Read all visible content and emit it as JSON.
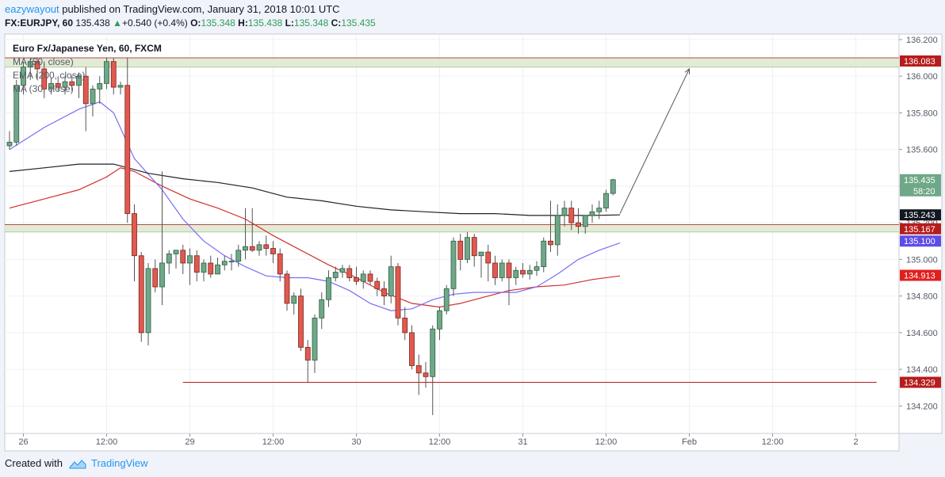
{
  "header": {
    "author": "eazywayout",
    "published": "published on TradingView.com, January 31, 2018 10:01 UTC",
    "symbol": "FX:EURJPY, 60",
    "last": "135.438",
    "change": "+0.540 (+0.4%)",
    "o_label": "O:",
    "o_value": "135.348",
    "h_label": "H:",
    "h_value": "135.438",
    "l_label": "L:",
    "l_value": "135.348",
    "c_label": "C:",
    "c_value": "135.435"
  },
  "footer": {
    "created_with": "Created with",
    "brand": "TradingView"
  },
  "chart_data": {
    "type": "candlestick",
    "title": "Euro Fx/Japanese Yen, 60, FXCM",
    "legend": [
      "MA (50, close)",
      "EMA (200, close)",
      "MA (30, close)"
    ],
    "ylim": [
      134.05,
      136.23
    ],
    "y_ticks": [
      136.2,
      136.0,
      135.8,
      135.6,
      135.4,
      135.2,
      135.0,
      134.8,
      134.6,
      134.4,
      134.2
    ],
    "y_tick_labels": [
      "136.200",
      "136.000",
      "135.800",
      "135.600",
      "135.400",
      "135.200",
      "135.000",
      "134.800",
      "134.600",
      "134.400",
      "134.200"
    ],
    "x_ticks": [
      {
        "label": "26",
        "i": 2
      },
      {
        "label": "12:00",
        "i": 14
      },
      {
        "label": "29",
        "i": 26
      },
      {
        "label": "12:00",
        "i": 38
      },
      {
        "label": "30",
        "i": 50
      },
      {
        "label": "12:00",
        "i": 62
      },
      {
        "label": "31",
        "i": 74
      },
      {
        "label": "12:00",
        "i": 86
      },
      {
        "label": "Feb",
        "i": 98
      },
      {
        "label": "12:00",
        "i": 110
      },
      {
        "label": "2",
        "i": 122
      }
    ],
    "price_tags": [
      {
        "label": "136.083",
        "value": 136.083,
        "bg": "#b71c1c",
        "fg": "#ffffff"
      },
      {
        "label": "135.435",
        "value": 135.435,
        "bg": "#6fa888",
        "fg": "#ffffff",
        "sub": "58:20"
      },
      {
        "label": "135.243",
        "value": 135.243,
        "bg": "#131722",
        "fg": "#ffffff"
      },
      {
        "label": "135.167",
        "value": 135.167,
        "bg": "#b71c1c",
        "fg": "#ffffff"
      },
      {
        "label": "135.100",
        "value": 135.1,
        "bg": "#5d4de8",
        "fg": "#ffffff"
      },
      {
        "label": "134.913",
        "value": 134.913,
        "bg": "#e0201f",
        "fg": "#ffffff"
      },
      {
        "label": "134.329",
        "value": 134.329,
        "bg": "#b71c1c",
        "fg": "#ffffff"
      }
    ],
    "zones": [
      {
        "from": 136.05,
        "to": 136.1
      },
      {
        "from": 135.15,
        "to": 135.19
      }
    ],
    "support_line": {
      "value": 134.329,
      "from_i": 25,
      "to_i": 125
    },
    "arrow": {
      "from_i": 88,
      "from_v": 135.25,
      "to_i": 98,
      "to_v": 136.04
    },
    "candles": [
      {
        "o": 135.62,
        "h": 135.7,
        "l": 135.6,
        "c": 135.64
      },
      {
        "o": 135.64,
        "h": 135.98,
        "l": 135.62,
        "c": 135.95
      },
      {
        "o": 135.95,
        "h": 136.08,
        "l": 135.9,
        "c": 136.05
      },
      {
        "o": 136.05,
        "h": 136.1,
        "l": 135.98,
        "c": 136.08
      },
      {
        "o": 136.08,
        "h": 136.1,
        "l": 135.98,
        "c": 136.04
      },
      {
        "o": 136.04,
        "h": 136.08,
        "l": 135.88,
        "c": 135.93
      },
      {
        "o": 135.93,
        "h": 135.99,
        "l": 135.9,
        "c": 135.96
      },
      {
        "o": 135.96,
        "h": 136.0,
        "l": 135.92,
        "c": 135.94
      },
      {
        "o": 135.94,
        "h": 136.0,
        "l": 135.9,
        "c": 135.97
      },
      {
        "o": 135.97,
        "h": 136.0,
        "l": 135.92,
        "c": 135.95
      },
      {
        "o": 135.95,
        "h": 136.02,
        "l": 135.88,
        "c": 136.0
      },
      {
        "o": 136.0,
        "h": 136.05,
        "l": 135.7,
        "c": 135.85
      },
      {
        "o": 135.85,
        "h": 135.95,
        "l": 135.78,
        "c": 135.93
      },
      {
        "o": 135.93,
        "h": 136.0,
        "l": 135.85,
        "c": 135.96
      },
      {
        "o": 135.96,
        "h": 136.1,
        "l": 135.93,
        "c": 136.08
      },
      {
        "o": 136.08,
        "h": 136.1,
        "l": 135.9,
        "c": 135.94
      },
      {
        "o": 135.94,
        "h": 135.97,
        "l": 135.9,
        "c": 135.95
      },
      {
        "o": 135.95,
        "h": 136.1,
        "l": 135.2,
        "c": 135.25
      },
      {
        "o": 135.25,
        "h": 135.3,
        "l": 134.88,
        "c": 135.02
      },
      {
        "o": 135.02,
        "h": 135.04,
        "l": 134.55,
        "c": 134.6
      },
      {
        "o": 134.6,
        "h": 134.98,
        "l": 134.53,
        "c": 134.95
      },
      {
        "o": 134.95,
        "h": 135.0,
        "l": 134.82,
        "c": 134.85
      },
      {
        "o": 134.85,
        "h": 135.48,
        "l": 134.75,
        "c": 134.98
      },
      {
        "o": 134.98,
        "h": 135.05,
        "l": 134.92,
        "c": 135.03
      },
      {
        "o": 135.03,
        "h": 135.05,
        "l": 134.95,
        "c": 135.05
      },
      {
        "o": 135.05,
        "h": 135.08,
        "l": 134.92,
        "c": 134.98
      },
      {
        "o": 134.98,
        "h": 135.06,
        "l": 134.86,
        "c": 135.02
      },
      {
        "o": 135.02,
        "h": 135.05,
        "l": 134.88,
        "c": 134.93
      },
      {
        "o": 134.93,
        "h": 135.0,
        "l": 134.88,
        "c": 134.98
      },
      {
        "o": 134.98,
        "h": 135.02,
        "l": 134.9,
        "c": 134.92
      },
      {
        "o": 134.92,
        "h": 135.01,
        "l": 134.92,
        "c": 134.97
      },
      {
        "o": 134.97,
        "h": 135.02,
        "l": 134.94,
        "c": 134.99
      },
      {
        "o": 134.99,
        "h": 135.03,
        "l": 134.94,
        "c": 134.99
      },
      {
        "o": 134.99,
        "h": 135.08,
        "l": 134.96,
        "c": 135.05
      },
      {
        "o": 135.05,
        "h": 135.28,
        "l": 135.0,
        "c": 135.07
      },
      {
        "o": 135.07,
        "h": 135.28,
        "l": 135.04,
        "c": 135.05
      },
      {
        "o": 135.05,
        "h": 135.1,
        "l": 135.02,
        "c": 135.08
      },
      {
        "o": 135.08,
        "h": 135.13,
        "l": 135.02,
        "c": 135.06
      },
      {
        "o": 135.06,
        "h": 135.1,
        "l": 134.98,
        "c": 135.03
      },
      {
        "o": 135.03,
        "h": 135.06,
        "l": 134.88,
        "c": 134.92
      },
      {
        "o": 134.92,
        "h": 134.94,
        "l": 134.72,
        "c": 134.76
      },
      {
        "o": 134.76,
        "h": 134.82,
        "l": 134.7,
        "c": 134.8
      },
      {
        "o": 134.8,
        "h": 134.84,
        "l": 134.5,
        "c": 134.52
      },
      {
        "o": 134.52,
        "h": 134.56,
        "l": 134.33,
        "c": 134.45
      },
      {
        "o": 134.45,
        "h": 134.7,
        "l": 134.38,
        "c": 134.68
      },
      {
        "o": 134.68,
        "h": 134.82,
        "l": 134.62,
        "c": 134.78
      },
      {
        "o": 134.78,
        "h": 134.94,
        "l": 134.74,
        "c": 134.9
      },
      {
        "o": 134.9,
        "h": 134.96,
        "l": 134.88,
        "c": 134.93
      },
      {
        "o": 134.93,
        "h": 134.97,
        "l": 134.9,
        "c": 134.95
      },
      {
        "o": 134.95,
        "h": 134.97,
        "l": 134.88,
        "c": 134.9
      },
      {
        "o": 134.9,
        "h": 134.96,
        "l": 134.86,
        "c": 134.88
      },
      {
        "o": 134.88,
        "h": 134.94,
        "l": 134.84,
        "c": 134.92
      },
      {
        "o": 134.92,
        "h": 134.94,
        "l": 134.86,
        "c": 134.88
      },
      {
        "o": 134.88,
        "h": 134.9,
        "l": 134.8,
        "c": 134.84
      },
      {
        "o": 134.84,
        "h": 134.88,
        "l": 134.75,
        "c": 134.8
      },
      {
        "o": 134.8,
        "h": 135.02,
        "l": 134.76,
        "c": 134.96
      },
      {
        "o": 134.96,
        "h": 134.98,
        "l": 134.64,
        "c": 134.68
      },
      {
        "o": 134.68,
        "h": 134.74,
        "l": 134.56,
        "c": 134.6
      },
      {
        "o": 134.6,
        "h": 134.64,
        "l": 134.4,
        "c": 134.42
      },
      {
        "o": 134.42,
        "h": 134.48,
        "l": 134.26,
        "c": 134.38
      },
      {
        "o": 134.38,
        "h": 134.44,
        "l": 134.3,
        "c": 134.36
      },
      {
        "o": 134.36,
        "h": 134.64,
        "l": 134.15,
        "c": 134.62
      },
      {
        "o": 134.62,
        "h": 134.74,
        "l": 134.56,
        "c": 134.72
      },
      {
        "o": 134.72,
        "h": 134.86,
        "l": 134.7,
        "c": 134.84
      },
      {
        "o": 134.84,
        "h": 135.12,
        "l": 134.8,
        "c": 135.1
      },
      {
        "o": 135.1,
        "h": 135.14,
        "l": 134.94,
        "c": 135.0
      },
      {
        "o": 135.0,
        "h": 135.15,
        "l": 134.98,
        "c": 135.12
      },
      {
        "o": 135.12,
        "h": 135.14,
        "l": 134.96,
        "c": 135.02
      },
      {
        "o": 135.02,
        "h": 135.04,
        "l": 134.9,
        "c": 135.04
      },
      {
        "o": 135.04,
        "h": 135.08,
        "l": 134.88,
        "c": 134.98
      },
      {
        "o": 134.98,
        "h": 135.02,
        "l": 134.86,
        "c": 134.9
      },
      {
        "o": 134.9,
        "h": 135.0,
        "l": 134.88,
        "c": 134.98
      },
      {
        "o": 134.98,
        "h": 135.0,
        "l": 134.75,
        "c": 134.9
      },
      {
        "o": 134.9,
        "h": 134.96,
        "l": 134.86,
        "c": 134.94
      },
      {
        "o": 134.94,
        "h": 134.98,
        "l": 134.9,
        "c": 134.92
      },
      {
        "o": 134.92,
        "h": 134.97,
        "l": 134.89,
        "c": 134.94
      },
      {
        "o": 134.94,
        "h": 134.99,
        "l": 134.91,
        "c": 134.96
      },
      {
        "o": 134.96,
        "h": 135.12,
        "l": 134.93,
        "c": 135.1
      },
      {
        "o": 135.1,
        "h": 135.32,
        "l": 135.04,
        "c": 135.08
      },
      {
        "o": 135.08,
        "h": 135.3,
        "l": 135.02,
        "c": 135.24
      },
      {
        "o": 135.24,
        "h": 135.32,
        "l": 135.18,
        "c": 135.28
      },
      {
        "o": 135.28,
        "h": 135.32,
        "l": 135.16,
        "c": 135.2
      },
      {
        "o": 135.2,
        "h": 135.28,
        "l": 135.14,
        "c": 135.18
      },
      {
        "o": 135.18,
        "h": 135.24,
        "l": 135.14,
        "c": 135.24
      },
      {
        "o": 135.24,
        "h": 135.3,
        "l": 135.2,
        "c": 135.26
      },
      {
        "o": 135.26,
        "h": 135.32,
        "l": 135.22,
        "c": 135.28
      },
      {
        "o": 135.28,
        "h": 135.38,
        "l": 135.26,
        "c": 135.36
      },
      {
        "o": 135.36,
        "h": 135.44,
        "l": 135.35,
        "c": 135.435
      }
    ],
    "ma50": [
      [
        0,
        135.6
      ],
      [
        5,
        135.72
      ],
      [
        10,
        135.82
      ],
      [
        13,
        135.86
      ],
      [
        15,
        135.8
      ],
      [
        18,
        135.55
      ],
      [
        22,
        135.38
      ],
      [
        25,
        135.22
      ],
      [
        28,
        135.1
      ],
      [
        31,
        135.02
      ],
      [
        34,
        134.96
      ],
      [
        37,
        134.91
      ],
      [
        40,
        134.9
      ],
      [
        43,
        134.9
      ],
      [
        46,
        134.88
      ],
      [
        49,
        134.83
      ],
      [
        52,
        134.76
      ],
      [
        55,
        134.72
      ],
      [
        58,
        134.73
      ],
      [
        61,
        134.78
      ],
      [
        64,
        134.81
      ],
      [
        67,
        134.82
      ],
      [
        70,
        134.82
      ],
      [
        73,
        134.82
      ],
      [
        76,
        134.85
      ],
      [
        79,
        134.92
      ],
      [
        82,
        135.0
      ],
      [
        85,
        135.05
      ],
      [
        88,
        135.09
      ]
    ],
    "ema200": [
      [
        0,
        135.28
      ],
      [
        5,
        135.33
      ],
      [
        10,
        135.38
      ],
      [
        14,
        135.45
      ],
      [
        16,
        135.5
      ],
      [
        18,
        135.48
      ],
      [
        22,
        135.4
      ],
      [
        26,
        135.33
      ],
      [
        30,
        135.28
      ],
      [
        34,
        135.22
      ],
      [
        38,
        135.13
      ],
      [
        42,
        135.05
      ],
      [
        46,
        134.97
      ],
      [
        50,
        134.9
      ],
      [
        54,
        134.82
      ],
      [
        58,
        134.76
      ],
      [
        62,
        134.74
      ],
      [
        65,
        134.76
      ],
      [
        68,
        134.79
      ],
      [
        72,
        134.83
      ],
      [
        76,
        134.85
      ],
      [
        80,
        134.86
      ],
      [
        84,
        134.89
      ],
      [
        88,
        134.91
      ]
    ],
    "ma30": [
      [
        0,
        135.48
      ],
      [
        5,
        135.5
      ],
      [
        10,
        135.52
      ],
      [
        15,
        135.52
      ],
      [
        20,
        135.47
      ],
      [
        25,
        135.44
      ],
      [
        30,
        135.42
      ],
      [
        35,
        135.39
      ],
      [
        40,
        135.34
      ],
      [
        45,
        135.32
      ],
      [
        50,
        135.29
      ],
      [
        55,
        135.27
      ],
      [
        60,
        135.26
      ],
      [
        65,
        135.25
      ],
      [
        70,
        135.25
      ],
      [
        75,
        135.24
      ],
      [
        80,
        135.24
      ],
      [
        84,
        135.24
      ],
      [
        88,
        135.243
      ]
    ]
  }
}
